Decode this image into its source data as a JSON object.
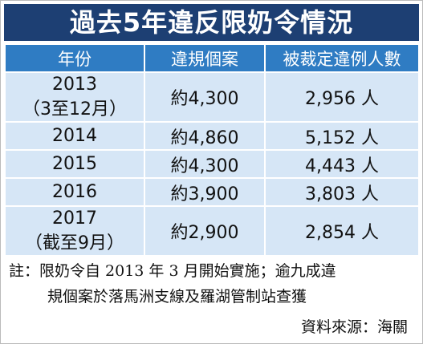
{
  "title": "過去5年違反限奶令情況",
  "table": {
    "headers": [
      "年份",
      "違規個案",
      "被裁定違例人數"
    ],
    "rows": [
      {
        "year": "2013",
        "period": "（3至12月）",
        "cases": "約4,300",
        "convicted": "2,956 人"
      },
      {
        "year": "2014",
        "cases": "約4,860",
        "convicted": "5,152 人"
      },
      {
        "year": "2015",
        "cases": "約4,300",
        "convicted": "4,443 人"
      },
      {
        "year": "2016",
        "cases": "約3,900",
        "convicted": "3,803 人"
      },
      {
        "year": "2017",
        "period": "（截至9月）",
        "cases": "約2,900",
        "convicted": "2,854 人"
      }
    ]
  },
  "footnote": [
    "註：限奶令自 2013 年 3 月開始實施；逾九成違",
    "規個案於落馬洲支線及羅湖管制站查獲"
  ],
  "source": "資料來源：海關"
}
